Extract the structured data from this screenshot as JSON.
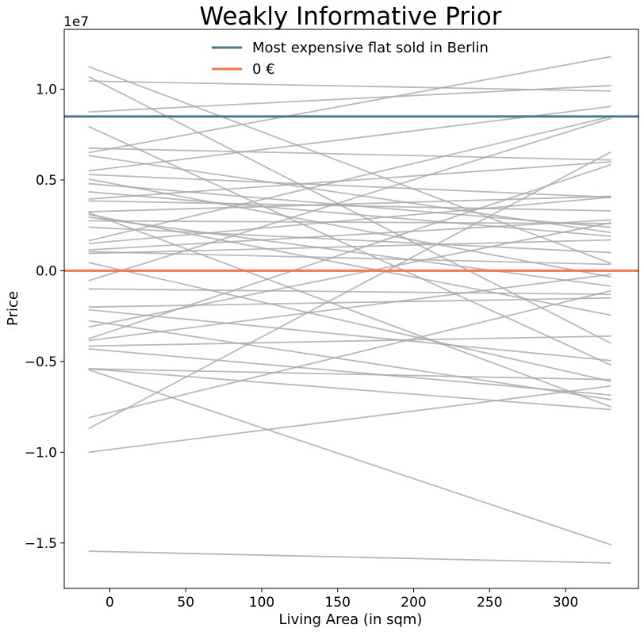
{
  "chart_data": {
    "type": "line",
    "title": "Weakly Informative Prior",
    "xlabel": "Living Area (in sqm)",
    "ylabel": "Price",
    "y_offset_label": "1e7",
    "xlim": [
      -30,
      348
    ],
    "ylim": [
      -17500000.0,
      13300000.0
    ],
    "x_ticks": [
      0,
      50,
      100,
      150,
      200,
      250,
      300
    ],
    "x_tick_labels": [
      "0",
      "50",
      "100",
      "150",
      "200",
      "250",
      "300"
    ],
    "y_ticks": [
      -15000000.0,
      -10000000.0,
      -5000000.0,
      0,
      5000000.0,
      10000000.0
    ],
    "y_tick_labels": [
      "−1.5",
      "−1.0",
      "−0.5",
      "0.0",
      "0.5",
      "1.0"
    ],
    "grid": false,
    "legend_position": "top-center",
    "reference_lines": [
      {
        "name": "Most expensive flat sold in Berlin",
        "y": 8500000.0,
        "color": "#4a7a86"
      },
      {
        "name": "0 €",
        "y": 0,
        "color": "#f07850"
      }
    ],
    "prior_lines_color": "#a8a8a8",
    "prior_lines": [
      {
        "x": [
          -14,
          330
        ],
        "y": [
          11250000.0,
          400000.0
        ]
      },
      {
        "x": [
          -14,
          330
        ],
        "y": [
          10700000.0,
          -4000000.0
        ]
      },
      {
        "x": [
          -14,
          330
        ],
        "y": [
          10450000.0,
          9900000.0
        ]
      },
      {
        "x": [
          -14,
          330
        ],
        "y": [
          8750000.0,
          10200000.0
        ]
      },
      {
        "x": [
          -14,
          330
        ],
        "y": [
          7950000.0,
          -5200000.0
        ]
      },
      {
        "x": [
          -14,
          330
        ],
        "y": [
          6750000.0,
          6100000.0
        ]
      },
      {
        "x": [
          -14,
          330
        ],
        "y": [
          6500000.0,
          11800000.0
        ]
      },
      {
        "x": [
          -14,
          330
        ],
        "y": [
          6350000.0,
          2100000.0
        ]
      },
      {
        "x": [
          -14,
          330
        ],
        "y": [
          5500000.0,
          9050000.0
        ]
      },
      {
        "x": [
          -14,
          330
        ],
        "y": [
          5300000.0,
          4050000.0
        ]
      },
      {
        "x": [
          -14,
          330
        ],
        "y": [
          5050000.0,
          -350000.0
        ]
      },
      {
        "x": [
          -14,
          330
        ],
        "y": [
          4800000.0,
          2400000.0
        ]
      },
      {
        "x": [
          -14,
          330
        ],
        "y": [
          4350000.0,
          1900000.0
        ]
      },
      {
        "x": [
          -14,
          330
        ],
        "y": [
          3950000.0,
          6000000.0
        ]
      },
      {
        "x": [
          -14,
          330
        ],
        "y": [
          3850000.0,
          3300000.0
        ]
      },
      {
        "x": [
          -14,
          330
        ],
        "y": [
          3250000.0,
          4100000.0
        ]
      },
      {
        "x": [
          -14,
          330
        ],
        "y": [
          3200000.0,
          -7500000.0
        ]
      },
      {
        "x": [
          -14,
          330
        ],
        "y": [
          3100000.0,
          -2450000.0
        ]
      },
      {
        "x": [
          -14,
          330
        ],
        "y": [
          2950000.0,
          -850000.0
        ]
      },
      {
        "x": [
          -14,
          330
        ],
        "y": [
          2750000.0,
          2600000.0
        ]
      },
      {
        "x": [
          -14,
          330
        ],
        "y": [
          2400000.0,
          1000000.0
        ]
      },
      {
        "x": [
          -14,
          330
        ],
        "y": [
          1650000.0,
          8500000.0
        ]
      },
      {
        "x": [
          -14,
          330
        ],
        "y": [
          1500000.0,
          4050000.0
        ]
      },
      {
        "x": [
          -14,
          330
        ],
        "y": [
          1150000.0,
          2800000.0
        ]
      },
      {
        "x": [
          -14,
          330
        ],
        "y": [
          1050000.0,
          350000.0
        ]
      },
      {
        "x": [
          -14,
          330
        ],
        "y": [
          950000.0,
          1700000.0
        ]
      },
      {
        "x": [
          -14,
          330
        ],
        "y": [
          450000.0,
          -6100000.0
        ]
      },
      {
        "x": [
          -14,
          330
        ],
        "y": [
          -550000.0,
          8400000.0
        ]
      },
      {
        "x": [
          -14,
          330
        ],
        "y": [
          -1000000.0,
          -1300000.0
        ]
      },
      {
        "x": [
          -14,
          330
        ],
        "y": [
          -2000000.0,
          -1500000.0
        ]
      },
      {
        "x": [
          -14,
          330
        ],
        "y": [
          -2150000.0,
          -4950000.0
        ]
      },
      {
        "x": [
          -14,
          330
        ],
        "y": [
          -2750000.0,
          -7100000.0
        ]
      },
      {
        "x": [
          -14,
          330
        ],
        "y": [
          -3100000.0,
          2650000.0
        ]
      },
      {
        "x": [
          -14,
          330
        ],
        "y": [
          -3750000.0,
          5850000.0
        ]
      },
      {
        "x": [
          -14,
          330
        ],
        "y": [
          -3850000.0,
          -200000.0
        ]
      },
      {
        "x": [
          -14,
          330
        ],
        "y": [
          -4150000.0,
          -3600000.0
        ]
      },
      {
        "x": [
          -14,
          330
        ],
        "y": [
          -4300000.0,
          -6850000.0
        ]
      },
      {
        "x": [
          -14,
          330
        ],
        "y": [
          -5400000.0,
          -7650000.0
        ]
      },
      {
        "x": [
          -14,
          330
        ],
        "y": [
          -5450000.0,
          -15100000.0
        ]
      },
      {
        "x": [
          -14,
          330
        ],
        "y": [
          -8100000.0,
          -1100000.0
        ]
      },
      {
        "x": [
          -14,
          330
        ],
        "y": [
          -8700000.0,
          6550000.0
        ]
      },
      {
        "x": [
          -14,
          330
        ],
        "y": [
          -10000000.0,
          -6350000.0
        ]
      },
      {
        "x": [
          -14,
          330
        ],
        "y": [
          -15450000.0,
          -16100000.0
        ]
      },
      {
        "x": [
          -14,
          330
        ],
        "y": [
          -5400000.0,
          -6000000.0
        ]
      }
    ]
  }
}
